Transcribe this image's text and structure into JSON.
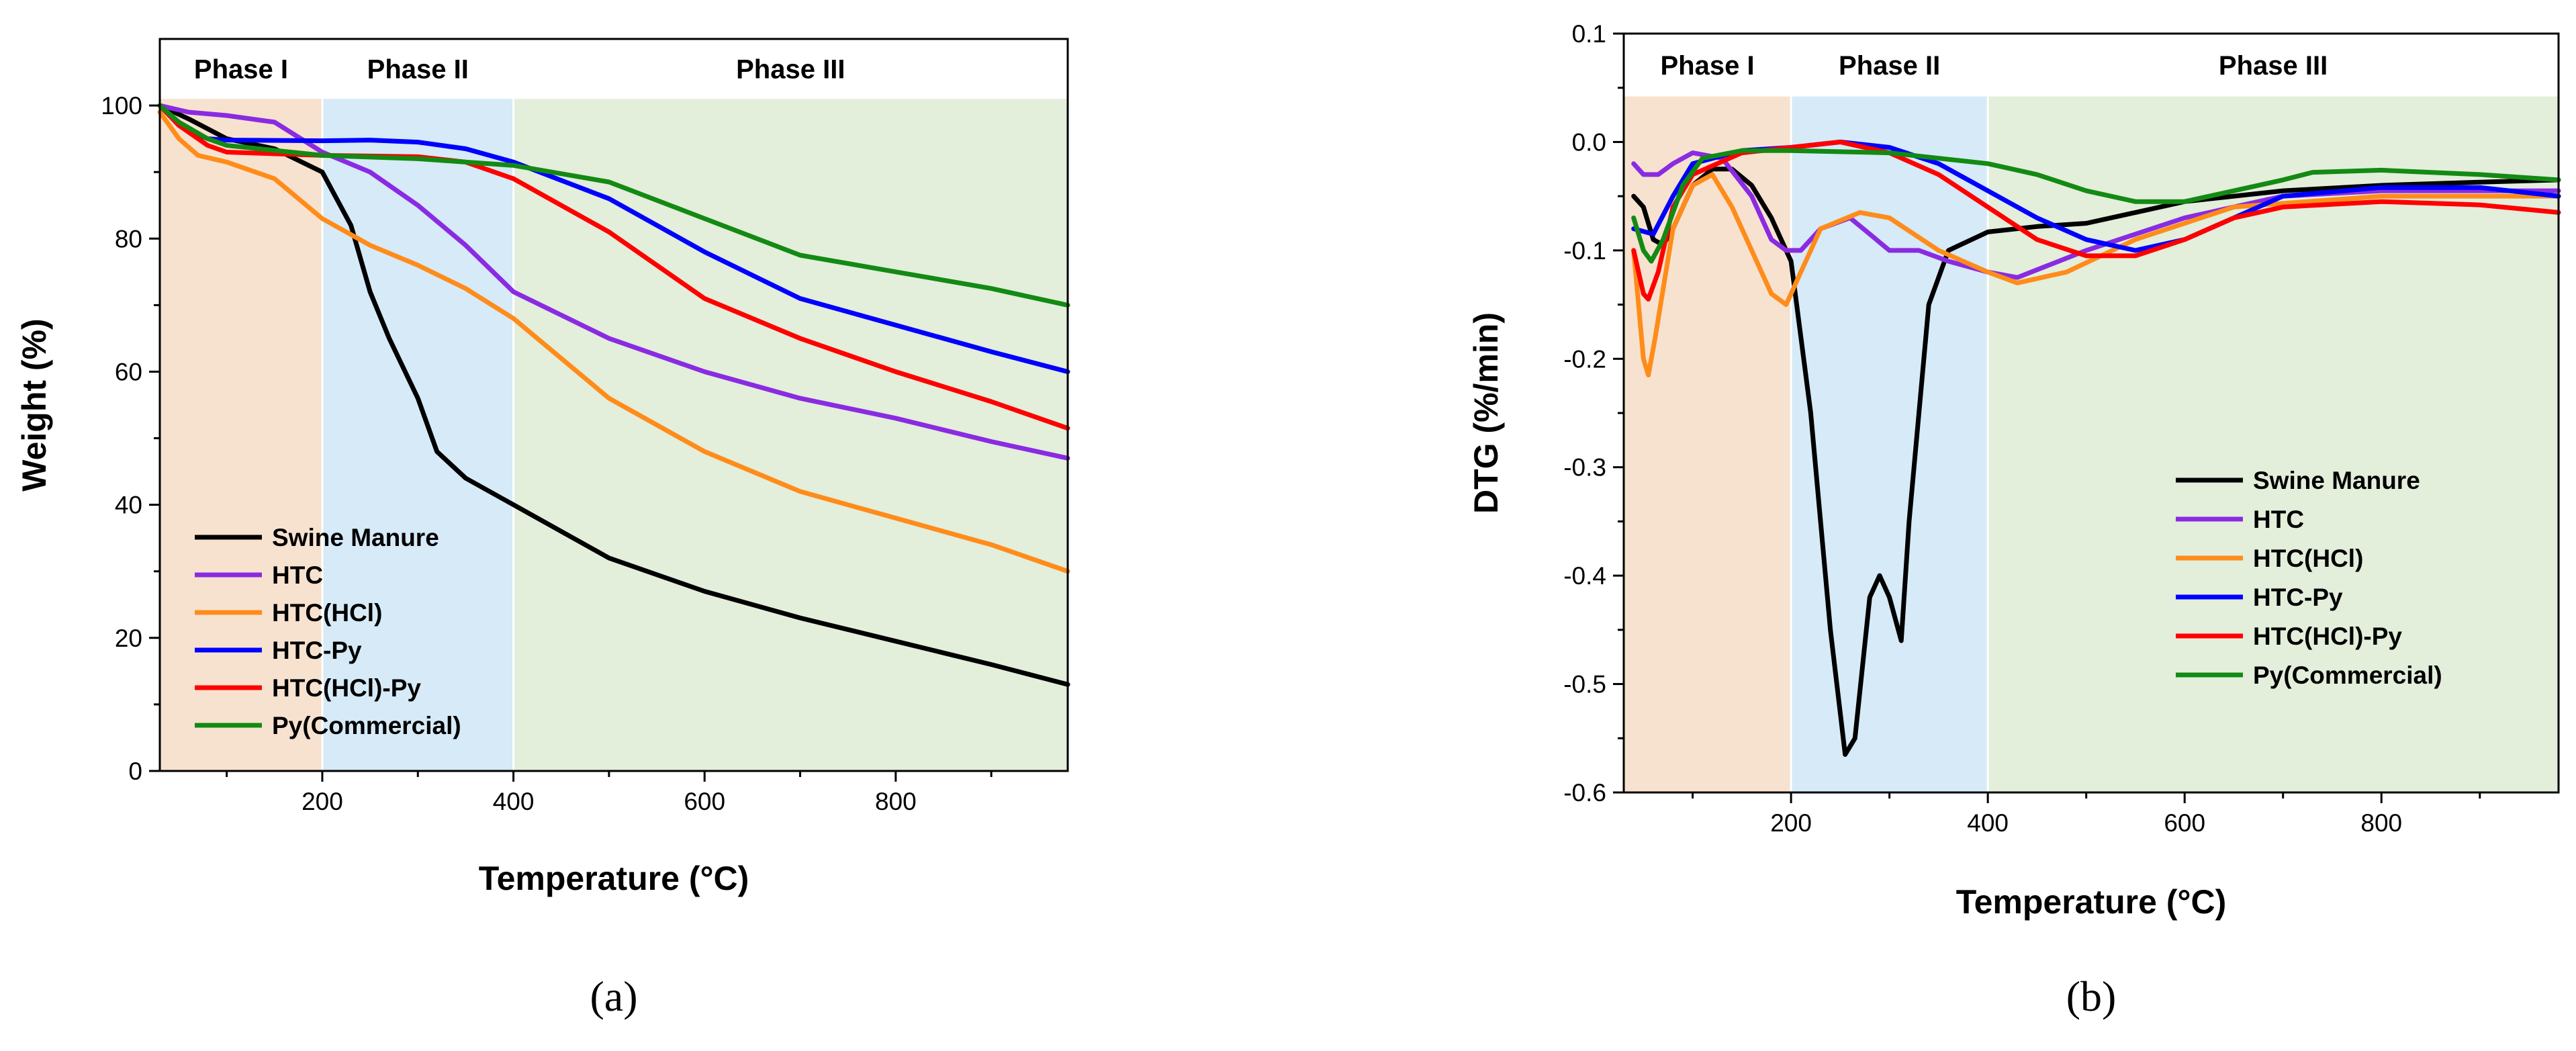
{
  "chart_data": [
    {
      "type": "line",
      "panel_label": "(a)",
      "xlabel": "Temperature (°C)",
      "ylabel": "Weight (%)",
      "xlim": [
        30,
        980
      ],
      "ylim": [
        0,
        110
      ],
      "x_ticks": [
        200,
        400,
        600,
        800
      ],
      "x_ticks_text": [
        "200",
        "400",
        "600",
        "800"
      ],
      "y_ticks": [
        0,
        20,
        40,
        60,
        80,
        100
      ],
      "y_ticks_text": [
        "0",
        "20",
        "40",
        "60",
        "80",
        "100"
      ],
      "phases": [
        {
          "label": "Phase I",
          "from": 30,
          "to": 200,
          "color": "#f7e2cf"
        },
        {
          "label": "Phase II",
          "from": 200,
          "to": 400,
          "color": "#d6eaf7"
        },
        {
          "label": "Phase III",
          "from": 400,
          "to": 980,
          "color": "#e3eedb"
        }
      ],
      "phase_band_top": 101,
      "legend_position": "bottom-left",
      "series": [
        {
          "name": "Swine Manure",
          "color": "#000000",
          "points": [
            [
              30,
              100
            ],
            [
              60,
              98
            ],
            [
              100,
              95
            ],
            [
              150,
              93.5
            ],
            [
              200,
              90
            ],
            [
              230,
              82
            ],
            [
              250,
              72
            ],
            [
              270,
              65
            ],
            [
              300,
              56
            ],
            [
              320,
              48
            ],
            [
              350,
              44
            ],
            [
              400,
              40
            ],
            [
              500,
              32
            ],
            [
              600,
              27
            ],
            [
              700,
              23
            ],
            [
              800,
              19.5
            ],
            [
              900,
              16
            ],
            [
              980,
              13
            ]
          ]
        },
        {
          "name": "HTC",
          "color": "#8a2be2",
          "points": [
            [
              30,
              100
            ],
            [
              60,
              99
            ],
            [
              100,
              98.5
            ],
            [
              150,
              97.5
            ],
            [
              200,
              93
            ],
            [
              250,
              90
            ],
            [
              300,
              85
            ],
            [
              350,
              79
            ],
            [
              400,
              72
            ],
            [
              500,
              65
            ],
            [
              600,
              60
            ],
            [
              700,
              56
            ],
            [
              800,
              53
            ],
            [
              900,
              49.5
            ],
            [
              980,
              47
            ]
          ]
        },
        {
          "name": "HTC(HCl)",
          "color": "#ff8c1a",
          "points": [
            [
              30,
              99
            ],
            [
              50,
              95
            ],
            [
              70,
              92.5
            ],
            [
              100,
              91.5
            ],
            [
              150,
              89
            ],
            [
              200,
              83
            ],
            [
              250,
              79
            ],
            [
              300,
              76
            ],
            [
              350,
              72.5
            ],
            [
              400,
              68
            ],
            [
              500,
              56
            ],
            [
              600,
              48
            ],
            [
              700,
              42
            ],
            [
              800,
              38
            ],
            [
              900,
              34
            ],
            [
              980,
              30
            ]
          ]
        },
        {
          "name": "HTC-Py",
          "color": "#0000ff",
          "points": [
            [
              30,
              100
            ],
            [
              50,
              97
            ],
            [
              80,
              95
            ],
            [
              100,
              94.8
            ],
            [
              200,
              94.7
            ],
            [
              250,
              94.8
            ],
            [
              300,
              94.5
            ],
            [
              350,
              93.5
            ],
            [
              400,
              91.5
            ],
            [
              500,
              86
            ],
            [
              600,
              78
            ],
            [
              700,
              71
            ],
            [
              800,
              67
            ],
            [
              900,
              63
            ],
            [
              980,
              60
            ]
          ]
        },
        {
          "name": "HTC(HCl)-Py",
          "color": "#ff0000",
          "points": [
            [
              30,
              100
            ],
            [
              50,
              97
            ],
            [
              80,
              94
            ],
            [
              100,
              93
            ],
            [
              200,
              92.5
            ],
            [
              300,
              92.3
            ],
            [
              350,
              91.5
            ],
            [
              400,
              89
            ],
            [
              500,
              81
            ],
            [
              600,
              71
            ],
            [
              700,
              65
            ],
            [
              800,
              60
            ],
            [
              900,
              55.5
            ],
            [
              980,
              51.5
            ]
          ]
        },
        {
          "name": "Py(Commercial)",
          "color": "#138a13",
          "points": [
            [
              30,
              100
            ],
            [
              50,
              97.5
            ],
            [
              80,
              95
            ],
            [
              100,
              94
            ],
            [
              200,
              92.5
            ],
            [
              300,
              92
            ],
            [
              400,
              91
            ],
            [
              500,
              88.5
            ],
            [
              600,
              83
            ],
            [
              700,
              77.5
            ],
            [
              800,
              75
            ],
            [
              900,
              72.5
            ],
            [
              980,
              70
            ]
          ]
        }
      ]
    },
    {
      "type": "line",
      "panel_label": "(b)",
      "xlabel": "Temperature (°C)",
      "ylabel": "DTG (%/min)",
      "xlim": [
        30,
        980
      ],
      "ylim": [
        -0.6,
        0.1
      ],
      "x_ticks": [
        200,
        400,
        600,
        800
      ],
      "x_ticks_text": [
        "200",
        "400",
        "600",
        "800"
      ],
      "y_ticks": [
        0.1,
        0.0,
        -0.1,
        -0.2,
        -0.3,
        -0.4,
        -0.5,
        -0.6
      ],
      "y_ticks_text": [
        "0.1",
        "0.0",
        "-0.1",
        "-0.2",
        "-0.3",
        "-0.4",
        "-0.5",
        "-0.6"
      ],
      "phases": [
        {
          "label": "Phase I",
          "from": 30,
          "to": 200,
          "color": "#f7e2cf"
        },
        {
          "label": "Phase II",
          "from": 200,
          "to": 400,
          "color": "#d6eaf7"
        },
        {
          "label": "Phase III",
          "from": 400,
          "to": 980,
          "color": "#e3eedb"
        }
      ],
      "phase_band_top": 0.042,
      "legend_position": "center-right",
      "series": [
        {
          "name": "Swine Manure",
          "color": "#000000",
          "points": [
            [
              40,
              -0.05
            ],
            [
              50,
              -0.06
            ],
            [
              60,
              -0.09
            ],
            [
              70,
              -0.095
            ],
            [
              80,
              -0.08
            ],
            [
              100,
              -0.04
            ],
            [
              120,
              -0.025
            ],
            [
              140,
              -0.025
            ],
            [
              160,
              -0.04
            ],
            [
              180,
              -0.07
            ],
            [
              200,
              -0.11
            ],
            [
              220,
              -0.25
            ],
            [
              240,
              -0.45
            ],
            [
              255,
              -0.565
            ],
            [
              265,
              -0.55
            ],
            [
              280,
              -0.42
            ],
            [
              290,
              -0.4
            ],
            [
              300,
              -0.42
            ],
            [
              312,
              -0.46
            ],
            [
              320,
              -0.35
            ],
            [
              340,
              -0.15
            ],
            [
              360,
              -0.1
            ],
            [
              400,
              -0.083
            ],
            [
              450,
              -0.078
            ],
            [
              500,
              -0.075
            ],
            [
              550,
              -0.065
            ],
            [
              600,
              -0.055
            ],
            [
              650,
              -0.05
            ],
            [
              700,
              -0.045
            ],
            [
              800,
              -0.04
            ],
            [
              900,
              -0.037
            ],
            [
              980,
              -0.035
            ]
          ]
        },
        {
          "name": "HTC",
          "color": "#8a2be2",
          "points": [
            [
              40,
              -0.02
            ],
            [
              50,
              -0.03
            ],
            [
              65,
              -0.03
            ],
            [
              80,
              -0.02
            ],
            [
              100,
              -0.01
            ],
            [
              130,
              -0.015
            ],
            [
              160,
              -0.05
            ],
            [
              180,
              -0.09
            ],
            [
              195,
              -0.1
            ],
            [
              210,
              -0.1
            ],
            [
              230,
              -0.08
            ],
            [
              260,
              -0.07
            ],
            [
              280,
              -0.085
            ],
            [
              300,
              -0.1
            ],
            [
              330,
              -0.1
            ],
            [
              360,
              -0.11
            ],
            [
              400,
              -0.12
            ],
            [
              430,
              -0.125
            ],
            [
              500,
              -0.1
            ],
            [
              600,
              -0.07
            ],
            [
              700,
              -0.05
            ],
            [
              800,
              -0.045
            ],
            [
              900,
              -0.045
            ],
            [
              980,
              -0.045
            ]
          ]
        },
        {
          "name": "HTC(HCl)",
          "color": "#ff8c1a",
          "points": [
            [
              40,
              -0.1
            ],
            [
              50,
              -0.2
            ],
            [
              55,
              -0.215
            ],
            [
              62,
              -0.18
            ],
            [
              80,
              -0.08
            ],
            [
              100,
              -0.04
            ],
            [
              120,
              -0.03
            ],
            [
              140,
              -0.06
            ],
            [
              160,
              -0.1
            ],
            [
              180,
              -0.14
            ],
            [
              195,
              -0.15
            ],
            [
              210,
              -0.12
            ],
            [
              230,
              -0.08
            ],
            [
              270,
              -0.065
            ],
            [
              300,
              -0.07
            ],
            [
              350,
              -0.1
            ],
            [
              400,
              -0.12
            ],
            [
              430,
              -0.13
            ],
            [
              480,
              -0.12
            ],
            [
              550,
              -0.09
            ],
            [
              650,
              -0.06
            ],
            [
              800,
              -0.05
            ],
            [
              900,
              -0.05
            ],
            [
              980,
              -0.05
            ]
          ]
        },
        {
          "name": "HTC-Py",
          "color": "#0000ff",
          "points": [
            [
              40,
              -0.08
            ],
            [
              60,
              -0.085
            ],
            [
              80,
              -0.05
            ],
            [
              100,
              -0.02
            ],
            [
              150,
              -0.008
            ],
            [
              200,
              -0.005
            ],
            [
              250,
              0.0
            ],
            [
              300,
              -0.005
            ],
            [
              350,
              -0.02
            ],
            [
              400,
              -0.045
            ],
            [
              450,
              -0.07
            ],
            [
              500,
              -0.09
            ],
            [
              550,
              -0.1
            ],
            [
              600,
              -0.09
            ],
            [
              650,
              -0.07
            ],
            [
              700,
              -0.05
            ],
            [
              800,
              -0.042
            ],
            [
              900,
              -0.042
            ],
            [
              980,
              -0.05
            ]
          ]
        },
        {
          "name": "HTC(HCl)-Py",
          "color": "#ff0000",
          "points": [
            [
              40,
              -0.1
            ],
            [
              50,
              -0.14
            ],
            [
              55,
              -0.145
            ],
            [
              65,
              -0.12
            ],
            [
              80,
              -0.06
            ],
            [
              100,
              -0.03
            ],
            [
              150,
              -0.01
            ],
            [
              200,
              -0.005
            ],
            [
              250,
              0.0
            ],
            [
              300,
              -0.01
            ],
            [
              350,
              -0.03
            ],
            [
              400,
              -0.06
            ],
            [
              450,
              -0.09
            ],
            [
              500,
              -0.105
            ],
            [
              550,
              -0.105
            ],
            [
              600,
              -0.09
            ],
            [
              650,
              -0.07
            ],
            [
              700,
              -0.06
            ],
            [
              800,
              -0.055
            ],
            [
              900,
              -0.058
            ],
            [
              980,
              -0.065
            ]
          ]
        },
        {
          "name": "Py(Commercial)",
          "color": "#138a13",
          "points": [
            [
              40,
              -0.07
            ],
            [
              50,
              -0.1
            ],
            [
              58,
              -0.11
            ],
            [
              70,
              -0.09
            ],
            [
              90,
              -0.04
            ],
            [
              110,
              -0.015
            ],
            [
              150,
              -0.008
            ],
            [
              200,
              -0.008
            ],
            [
              300,
              -0.01
            ],
            [
              400,
              -0.02
            ],
            [
              450,
              -0.03
            ],
            [
              500,
              -0.045
            ],
            [
              550,
              -0.055
            ],
            [
              600,
              -0.055
            ],
            [
              650,
              -0.045
            ],
            [
              700,
              -0.035
            ],
            [
              730,
              -0.028
            ],
            [
              800,
              -0.026
            ],
            [
              900,
              -0.03
            ],
            [
              980,
              -0.035
            ]
          ]
        }
      ]
    }
  ]
}
